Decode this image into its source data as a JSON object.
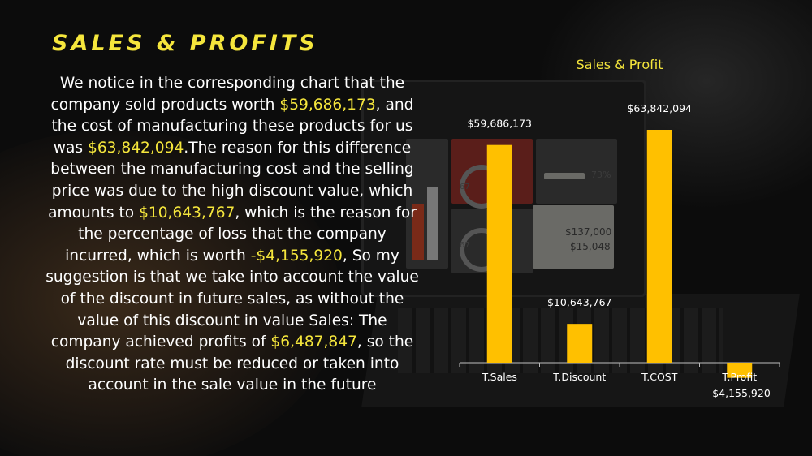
{
  "slide": {
    "title": "SALES & PROFITS",
    "paragraph": [
      {
        "text": "We notice in the corresponding chart that the company sold products worth ",
        "highlight": false
      },
      {
        "text": "$59,686,173",
        "highlight": true
      },
      {
        "text": ", and the cost of manufacturing these products for us was ",
        "highlight": false
      },
      {
        "text": "$63,842,094",
        "highlight": true
      },
      {
        "text": ".The reason for this difference between the manufacturing cost and the selling price was due to the high discount value, which amounts to ",
        "highlight": false
      },
      {
        "text": "$10,643,767",
        "highlight": true
      },
      {
        "text": ", which is the reason for the percentage of loss that the company incurred, which is worth ",
        "highlight": false
      },
      {
        "text": "-$4,155,920",
        "highlight": true
      },
      {
        "text": ", So my suggestion is that we take into account the value of the discount in future sales, as without the value of this discount in value Sales: The company achieved profits of ",
        "highlight": false
      },
      {
        "text": "$6,487,847",
        "highlight": true
      },
      {
        "text": ", so the discount rate must be reduced or taken into account in the sale value in the future",
        "highlight": false
      }
    ],
    "colors": {
      "accent": "#f5e63c",
      "bar": "#ffc000",
      "text": "#ffffff"
    }
  },
  "background": {
    "screen_numbers": [
      "73%",
      "67",
      "67",
      "$137,000",
      "$15,048"
    ]
  },
  "chart_data": {
    "type": "bar",
    "title": "Sales & Profit",
    "categories": [
      "T.Sales",
      "T.Discount",
      "T.COST",
      "T.Profit"
    ],
    "values": [
      59686173,
      10643767,
      63842094,
      -4155920
    ],
    "data_labels": [
      "$59,686,173",
      "$10,643,767",
      "$63,842,094",
      "-$4,155,920"
    ],
    "grid": false,
    "legend": "none"
  }
}
